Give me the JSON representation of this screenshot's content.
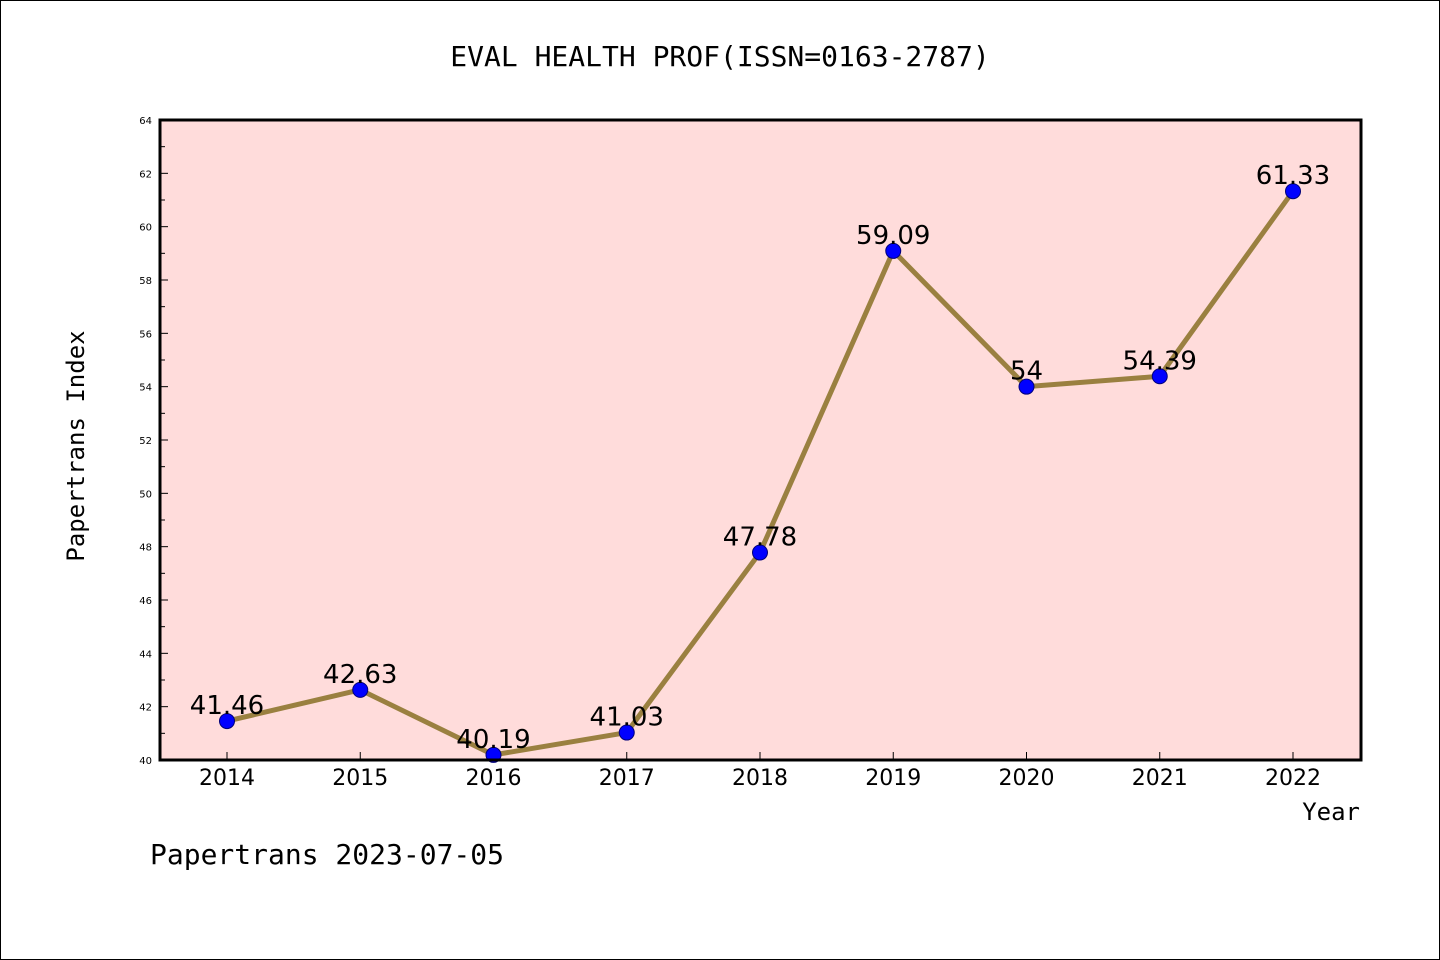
{
  "chart_data": {
    "type": "line",
    "title": "EVAL HEALTH PROF(ISSN=0163-2787)",
    "xlabel": "Year",
    "ylabel": "Papertrans Index",
    "categories": [
      "2014",
      "2015",
      "2016",
      "2017",
      "2018",
      "2019",
      "2020",
      "2021",
      "2022"
    ],
    "values": [
      41.46,
      42.63,
      40.19,
      41.03,
      47.78,
      59.09,
      54,
      54.39,
      61.33
    ],
    "data_labels": [
      "41.46",
      "42.63",
      "40.19",
      "41.03",
      "47.78",
      "59.09",
      "54",
      "54.39",
      "61.33"
    ],
    "ylim": [
      40,
      64
    ],
    "yticks": [
      "40",
      "42",
      "44",
      "46",
      "48",
      "50",
      "52",
      "54",
      "56",
      "58",
      "60",
      "62",
      "64"
    ],
    "grid": false,
    "colors": {
      "plot_background": "#ffdcdb",
      "line": "#9a8040",
      "marker": "#0000ff"
    }
  },
  "footer": "Papertrans 2023-07-05"
}
